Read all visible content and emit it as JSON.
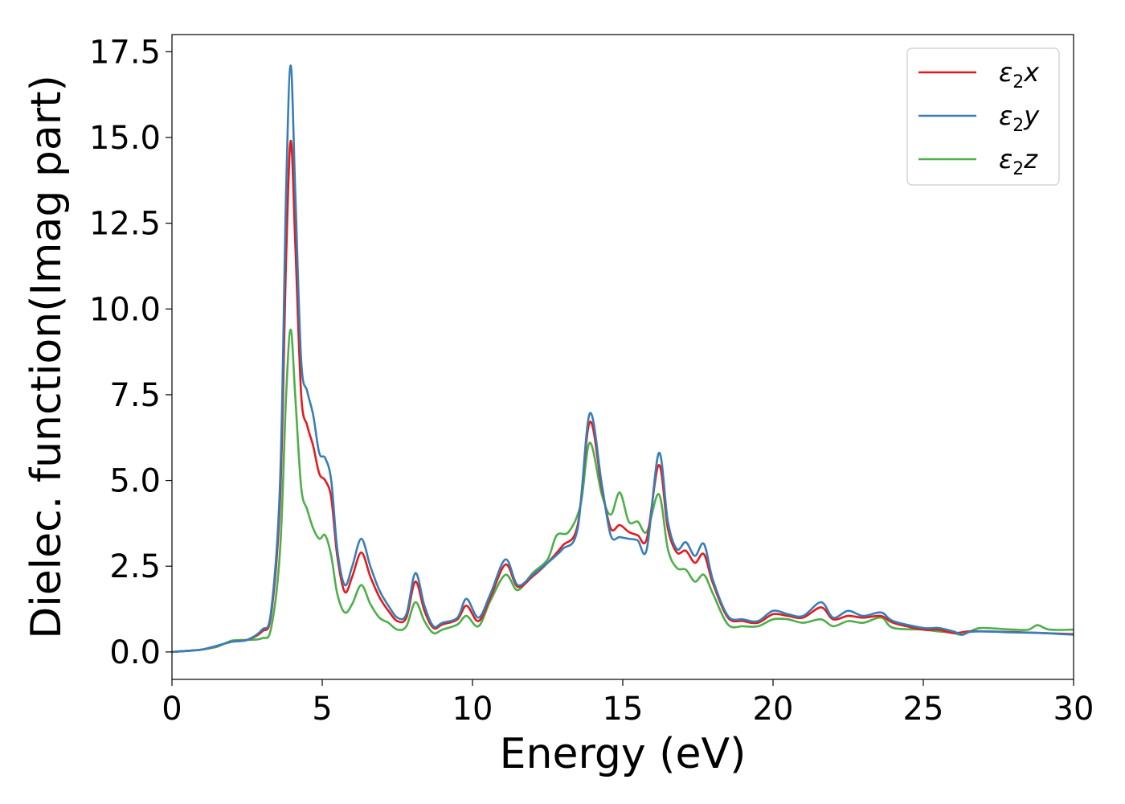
{
  "chart_data": {
    "type": "line",
    "xlabel": "Energy (eV)",
    "ylabel": "Dielec. function(Imag part)",
    "xlim": [
      0,
      30
    ],
    "ylim": [
      -0.8,
      18.0
    ],
    "xticks": [
      0,
      5,
      10,
      15,
      20,
      25,
      30
    ],
    "xtick_labels": [
      "0",
      "5",
      "10",
      "15",
      "20",
      "25",
      "30"
    ],
    "yticks": [
      0.0,
      2.5,
      5.0,
      7.5,
      10.0,
      12.5,
      15.0,
      17.5
    ],
    "ytick_labels": [
      "0.0",
      "2.5",
      "5.0",
      "7.5",
      "10.0",
      "12.5",
      "15.0",
      "17.5"
    ],
    "grid": false,
    "legend_position": "top-right",
    "series": [
      {
        "name": "ε2x",
        "legend_base": "ε",
        "legend_sub": "2",
        "legend_var": "x",
        "color": "#e41a1c",
        "points": [
          [
            0,
            0
          ],
          [
            0.5,
            0.03
          ],
          [
            1,
            0.07
          ],
          [
            1.5,
            0.18
          ],
          [
            2,
            0.3
          ],
          [
            2.5,
            0.35
          ],
          [
            3,
            0.6
          ],
          [
            3.3,
            1.1
          ],
          [
            3.6,
            4.5
          ],
          [
            3.8,
            11.5
          ],
          [
            3.95,
            14.9
          ],
          [
            4.1,
            12
          ],
          [
            4.3,
            7.5
          ],
          [
            4.5,
            6.6
          ],
          [
            4.7,
            6.0
          ],
          [
            4.9,
            5.2
          ],
          [
            5.1,
            5.0
          ],
          [
            5.3,
            4.5
          ],
          [
            5.5,
            2.8
          ],
          [
            5.75,
            1.75
          ],
          [
            6,
            2.2
          ],
          [
            6.3,
            2.9
          ],
          [
            6.6,
            2.2
          ],
          [
            6.9,
            1.6
          ],
          [
            7.2,
            1.2
          ],
          [
            7.5,
            0.9
          ],
          [
            7.8,
            1.0
          ],
          [
            8.1,
            2.05
          ],
          [
            8.4,
            1.2
          ],
          [
            8.7,
            0.7
          ],
          [
            9,
            0.8
          ],
          [
            9.5,
            0.95
          ],
          [
            9.8,
            1.35
          ],
          [
            10.2,
            0.9
          ],
          [
            10.6,
            1.6
          ],
          [
            11.1,
            2.55
          ],
          [
            11.5,
            1.9
          ],
          [
            12,
            2.2
          ],
          [
            12.5,
            2.6
          ],
          [
            13,
            3.1
          ],
          [
            13.5,
            3.7
          ],
          [
            13.9,
            6.7
          ],
          [
            14.3,
            4.8
          ],
          [
            14.6,
            3.6
          ],
          [
            14.9,
            3.7
          ],
          [
            15.2,
            3.5
          ],
          [
            15.5,
            3.4
          ],
          [
            15.8,
            3.3
          ],
          [
            16.2,
            5.45
          ],
          [
            16.5,
            3.6
          ],
          [
            16.8,
            2.9
          ],
          [
            17.1,
            2.95
          ],
          [
            17.4,
            2.6
          ],
          [
            17.7,
            2.85
          ],
          [
            18,
            2.0
          ],
          [
            18.5,
            1.0
          ],
          [
            19,
            0.9
          ],
          [
            19.5,
            0.85
          ],
          [
            20,
            1.1
          ],
          [
            20.5,
            1.05
          ],
          [
            21,
            1.0
          ],
          [
            21.6,
            1.3
          ],
          [
            22,
            0.95
          ],
          [
            22.5,
            1.05
          ],
          [
            23,
            1.0
          ],
          [
            23.6,
            1.05
          ],
          [
            24,
            0.85
          ],
          [
            25,
            0.65
          ],
          [
            25.5,
            0.65
          ],
          [
            26,
            0.55
          ],
          [
            26.5,
            0.6
          ],
          [
            27,
            0.6
          ],
          [
            28,
            0.58
          ],
          [
            29,
            0.55
          ],
          [
            30,
            0.52
          ]
        ]
      },
      {
        "name": "ε2y",
        "legend_base": "ε",
        "legend_sub": "2",
        "legend_var": "y",
        "color": "#377eb8",
        "points": [
          [
            0,
            0
          ],
          [
            0.5,
            0.03
          ],
          [
            1,
            0.07
          ],
          [
            1.5,
            0.18
          ],
          [
            2,
            0.3
          ],
          [
            2.5,
            0.35
          ],
          [
            3,
            0.65
          ],
          [
            3.3,
            1.2
          ],
          [
            3.6,
            5.0
          ],
          [
            3.8,
            13.5
          ],
          [
            3.95,
            17.1
          ],
          [
            4.1,
            13.5
          ],
          [
            4.3,
            8.5
          ],
          [
            4.5,
            7.6
          ],
          [
            4.7,
            6.9
          ],
          [
            4.9,
            5.8
          ],
          [
            5.1,
            5.65
          ],
          [
            5.3,
            5.0
          ],
          [
            5.5,
            3.0
          ],
          [
            5.75,
            1.95
          ],
          [
            6,
            2.5
          ],
          [
            6.3,
            3.3
          ],
          [
            6.6,
            2.5
          ],
          [
            6.9,
            1.8
          ],
          [
            7.2,
            1.35
          ],
          [
            7.5,
            1.0
          ],
          [
            7.8,
            1.1
          ],
          [
            8.1,
            2.3
          ],
          [
            8.4,
            1.35
          ],
          [
            8.7,
            0.75
          ],
          [
            9,
            0.85
          ],
          [
            9.5,
            1.0
          ],
          [
            9.8,
            1.55
          ],
          [
            10.2,
            1.0
          ],
          [
            10.6,
            1.7
          ],
          [
            11.1,
            2.7
          ],
          [
            11.5,
            1.95
          ],
          [
            12,
            2.25
          ],
          [
            12.5,
            2.6
          ],
          [
            13,
            3.0
          ],
          [
            13.5,
            3.6
          ],
          [
            13.9,
            6.95
          ],
          [
            14.3,
            4.9
          ],
          [
            14.6,
            3.4
          ],
          [
            14.9,
            3.35
          ],
          [
            15.2,
            3.3
          ],
          [
            15.5,
            3.25
          ],
          [
            15.8,
            3.0
          ],
          [
            16.2,
            5.8
          ],
          [
            16.5,
            3.8
          ],
          [
            16.8,
            3.0
          ],
          [
            17.1,
            3.2
          ],
          [
            17.4,
            2.8
          ],
          [
            17.7,
            3.15
          ],
          [
            18,
            2.1
          ],
          [
            18.5,
            1.05
          ],
          [
            19,
            0.95
          ],
          [
            19.5,
            0.9
          ],
          [
            20,
            1.2
          ],
          [
            20.5,
            1.1
          ],
          [
            21,
            1.05
          ],
          [
            21.6,
            1.45
          ],
          [
            22,
            1.0
          ],
          [
            22.5,
            1.2
          ],
          [
            23,
            1.05
          ],
          [
            23.6,
            1.15
          ],
          [
            24,
            0.9
          ],
          [
            25,
            0.7
          ],
          [
            25.5,
            0.7
          ],
          [
            26,
            0.6
          ],
          [
            26.3,
            0.5
          ],
          [
            26.5,
            0.58
          ],
          [
            27,
            0.6
          ],
          [
            28,
            0.57
          ],
          [
            29,
            0.55
          ],
          [
            30,
            0.5
          ]
        ]
      },
      {
        "name": "ε2z",
        "legend_base": "ε",
        "legend_sub": "2",
        "legend_var": "z",
        "color": "#4daf4a",
        "points": [
          [
            0,
            0
          ],
          [
            0.5,
            0.03
          ],
          [
            1,
            0.07
          ],
          [
            1.5,
            0.15
          ],
          [
            2,
            0.33
          ],
          [
            2.5,
            0.35
          ],
          [
            3,
            0.4
          ],
          [
            3.3,
            0.7
          ],
          [
            3.6,
            3.0
          ],
          [
            3.8,
            7.5
          ],
          [
            3.95,
            9.4
          ],
          [
            4.1,
            7.5
          ],
          [
            4.3,
            4.8
          ],
          [
            4.5,
            4.15
          ],
          [
            4.7,
            3.6
          ],
          [
            4.9,
            3.3
          ],
          [
            5.1,
            3.4
          ],
          [
            5.3,
            2.8
          ],
          [
            5.5,
            1.7
          ],
          [
            5.75,
            1.15
          ],
          [
            6,
            1.4
          ],
          [
            6.3,
            1.95
          ],
          [
            6.6,
            1.4
          ],
          [
            6.9,
            1.0
          ],
          [
            7.2,
            0.85
          ],
          [
            7.5,
            0.65
          ],
          [
            7.8,
            0.75
          ],
          [
            8.1,
            1.45
          ],
          [
            8.4,
            0.9
          ],
          [
            8.7,
            0.55
          ],
          [
            9,
            0.65
          ],
          [
            9.5,
            0.8
          ],
          [
            9.8,
            1.05
          ],
          [
            10.2,
            0.75
          ],
          [
            10.6,
            1.5
          ],
          [
            11.1,
            2.25
          ],
          [
            11.5,
            1.8
          ],
          [
            12,
            2.3
          ],
          [
            12.5,
            2.7
          ],
          [
            12.8,
            3.4
          ],
          [
            13.2,
            3.5
          ],
          [
            13.6,
            4.3
          ],
          [
            13.9,
            6.1
          ],
          [
            14.3,
            4.6
          ],
          [
            14.6,
            4.0
          ],
          [
            14.9,
            4.65
          ],
          [
            15.2,
            3.8
          ],
          [
            15.5,
            3.8
          ],
          [
            15.8,
            3.5
          ],
          [
            16.2,
            4.6
          ],
          [
            16.5,
            3.0
          ],
          [
            16.8,
            2.45
          ],
          [
            17.1,
            2.4
          ],
          [
            17.4,
            2.05
          ],
          [
            17.7,
            2.25
          ],
          [
            18,
            1.7
          ],
          [
            18.5,
            0.8
          ],
          [
            19,
            0.75
          ],
          [
            19.5,
            0.75
          ],
          [
            20,
            0.95
          ],
          [
            20.5,
            0.95
          ],
          [
            21,
            0.85
          ],
          [
            21.6,
            0.95
          ],
          [
            22,
            0.75
          ],
          [
            22.5,
            0.9
          ],
          [
            23,
            0.85
          ],
          [
            23.6,
            1.0
          ],
          [
            24,
            0.7
          ],
          [
            25,
            0.65
          ],
          [
            25.5,
            0.6
          ],
          [
            26,
            0.55
          ],
          [
            26.3,
            0.5
          ],
          [
            26.7,
            0.65
          ],
          [
            27,
            0.7
          ],
          [
            28,
            0.65
          ],
          [
            28.5,
            0.65
          ],
          [
            28.8,
            0.78
          ],
          [
            29.2,
            0.65
          ],
          [
            30,
            0.65
          ]
        ]
      }
    ]
  }
}
